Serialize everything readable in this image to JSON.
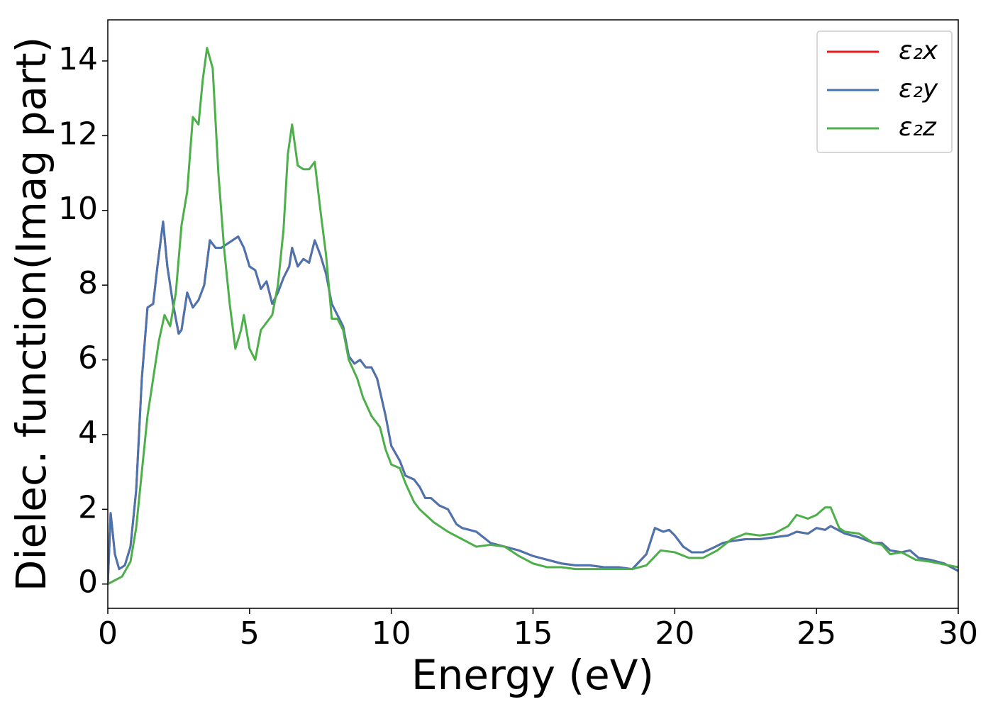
{
  "chart_data": {
    "type": "line",
    "xlabel": "Energy (eV)",
    "ylabel": "Dielec. function(Imag part)",
    "xlim": [
      0,
      30
    ],
    "xticks": [
      0,
      5,
      10,
      15,
      20,
      25,
      30
    ],
    "ylim": [
      -0.65,
      15.1
    ],
    "yticks": [
      0,
      2,
      4,
      6,
      8,
      10,
      12,
      14
    ],
    "legend": "upper right",
    "series": [
      {
        "name": "ε₂x",
        "color": "#e41a1c",
        "x": [
          0,
          0.1,
          0.25,
          0.4,
          0.6,
          0.8,
          1.0,
          1.2,
          1.4,
          1.6,
          1.75,
          1.95,
          2.1,
          2.3,
          2.5,
          2.6,
          2.8,
          3.0,
          3.2,
          3.4,
          3.6,
          3.8,
          4.0,
          4.2,
          4.6,
          4.8,
          5.0,
          5.2,
          5.4,
          5.6,
          5.8,
          6.0,
          6.2,
          6.4,
          6.5,
          6.7,
          6.9,
          7.1,
          7.3,
          7.5,
          7.7,
          7.9,
          8.1,
          8.3,
          8.5,
          8.7,
          8.9,
          9.1,
          9.3,
          9.5,
          9.8,
          10.0,
          10.3,
          10.5,
          10.8,
          11.0,
          11.2,
          11.4,
          11.7,
          12.0,
          12.3,
          12.5,
          13,
          13.5,
          14,
          14.5,
          15,
          15.5,
          16,
          16.5,
          17,
          17.5,
          18,
          18.5,
          19,
          19.3,
          19.6,
          19.8,
          20,
          20.3,
          20.6,
          21,
          21.3,
          21.7,
          22,
          22.5,
          23,
          23.5,
          24,
          24.3,
          24.7,
          25,
          25.3,
          25.5,
          26,
          26.5,
          27,
          27.3,
          27.6,
          28,
          28.3,
          28.6,
          29,
          29.5,
          30
        ],
        "values": [
          0,
          1.9,
          0.8,
          0.4,
          0.5,
          1.0,
          2.5,
          5.5,
          7.4,
          7.5,
          8.5,
          9.7,
          8.5,
          7.5,
          6.7,
          6.8,
          7.8,
          7.4,
          7.6,
          8.0,
          9.2,
          9.0,
          9.0,
          9.1,
          9.3,
          9.0,
          8.5,
          8.4,
          7.9,
          8.1,
          7.5,
          7.8,
          8.2,
          8.5,
          9.0,
          8.5,
          8.7,
          8.6,
          9.2,
          8.8,
          8.3,
          7.5,
          7.2,
          6.9,
          6.1,
          5.9,
          6.0,
          5.8,
          5.8,
          5.5,
          4.5,
          3.7,
          3.3,
          2.9,
          2.8,
          2.6,
          2.3,
          2.3,
          2.1,
          2.0,
          1.6,
          1.5,
          1.4,
          1.1,
          1.0,
          0.9,
          0.75,
          0.65,
          0.55,
          0.5,
          0.5,
          0.45,
          0.45,
          0.4,
          0.8,
          1.5,
          1.4,
          1.45,
          1.3,
          1.0,
          0.85,
          0.85,
          0.95,
          1.1,
          1.15,
          1.2,
          1.2,
          1.25,
          1.3,
          1.4,
          1.35,
          1.5,
          1.45,
          1.55,
          1.35,
          1.25,
          1.1,
          1.1,
          0.9,
          0.85,
          0.9,
          0.7,
          0.65,
          0.55,
          0.35
        ]
      },
      {
        "name": "ε₂y",
        "color": "#4a74b0",
        "x": [
          0,
          0.1,
          0.25,
          0.4,
          0.6,
          0.8,
          1.0,
          1.2,
          1.4,
          1.6,
          1.75,
          1.95,
          2.1,
          2.3,
          2.5,
          2.6,
          2.8,
          3.0,
          3.2,
          3.4,
          3.6,
          3.8,
          4.0,
          4.2,
          4.6,
          4.8,
          5.0,
          5.2,
          5.4,
          5.6,
          5.8,
          6.0,
          6.2,
          6.4,
          6.5,
          6.7,
          6.9,
          7.1,
          7.3,
          7.5,
          7.7,
          7.9,
          8.1,
          8.3,
          8.5,
          8.7,
          8.9,
          9.1,
          9.3,
          9.5,
          9.8,
          10.0,
          10.3,
          10.5,
          10.8,
          11.0,
          11.2,
          11.4,
          11.7,
          12.0,
          12.3,
          12.5,
          13,
          13.5,
          14,
          14.5,
          15,
          15.5,
          16,
          16.5,
          17,
          17.5,
          18,
          18.5,
          19,
          19.3,
          19.6,
          19.8,
          20,
          20.3,
          20.6,
          21,
          21.3,
          21.7,
          22,
          22.5,
          23,
          23.5,
          24,
          24.3,
          24.7,
          25,
          25.3,
          25.5,
          26,
          26.5,
          27,
          27.3,
          27.6,
          28,
          28.3,
          28.6,
          29,
          29.5,
          30
        ],
        "values": [
          0,
          1.9,
          0.8,
          0.4,
          0.5,
          1.0,
          2.5,
          5.5,
          7.4,
          7.5,
          8.5,
          9.7,
          8.5,
          7.5,
          6.7,
          6.8,
          7.8,
          7.4,
          7.6,
          8.0,
          9.2,
          9.0,
          9.0,
          9.1,
          9.3,
          9.0,
          8.5,
          8.4,
          7.9,
          8.1,
          7.5,
          7.8,
          8.2,
          8.5,
          9.0,
          8.5,
          8.7,
          8.6,
          9.2,
          8.8,
          8.3,
          7.5,
          7.2,
          6.9,
          6.1,
          5.9,
          6.0,
          5.8,
          5.8,
          5.5,
          4.5,
          3.7,
          3.3,
          2.9,
          2.8,
          2.6,
          2.3,
          2.3,
          2.1,
          2.0,
          1.6,
          1.5,
          1.4,
          1.1,
          1.0,
          0.9,
          0.75,
          0.65,
          0.55,
          0.5,
          0.5,
          0.45,
          0.45,
          0.4,
          0.8,
          1.5,
          1.4,
          1.45,
          1.3,
          1.0,
          0.85,
          0.85,
          0.95,
          1.1,
          1.15,
          1.2,
          1.2,
          1.25,
          1.3,
          1.4,
          1.35,
          1.5,
          1.45,
          1.55,
          1.35,
          1.25,
          1.1,
          1.1,
          0.9,
          0.85,
          0.9,
          0.7,
          0.65,
          0.55,
          0.35
        ]
      },
      {
        "name": "ε₂z",
        "color": "#4daf4a",
        "x": [
          0,
          0.5,
          0.8,
          1.0,
          1.2,
          1.4,
          1.6,
          1.8,
          2.0,
          2.2,
          2.4,
          2.6,
          2.8,
          3.0,
          3.2,
          3.35,
          3.5,
          3.7,
          3.9,
          4.1,
          4.3,
          4.5,
          4.7,
          4.8,
          5.0,
          5.2,
          5.4,
          5.6,
          5.8,
          6.0,
          6.2,
          6.35,
          6.5,
          6.7,
          6.9,
          7.1,
          7.3,
          7.5,
          7.7,
          7.9,
          8.1,
          8.3,
          8.5,
          8.8,
          9.0,
          9.3,
          9.6,
          9.8,
          10.0,
          10.3,
          10.5,
          10.8,
          11,
          11.5,
          12,
          12.5,
          13,
          13.5,
          14,
          14.5,
          15,
          15.5,
          16,
          16.5,
          17,
          18,
          18.5,
          19,
          19.5,
          20,
          20.5,
          21,
          21.5,
          22,
          22.5,
          23,
          23.5,
          24,
          24.3,
          24.7,
          25,
          25.3,
          25.5,
          25.8,
          26,
          26.5,
          27,
          27.3,
          27.6,
          28,
          28.5,
          29,
          30
        ],
        "values": [
          0,
          0.2,
          0.6,
          1.5,
          3.0,
          4.5,
          5.5,
          6.5,
          7.2,
          6.9,
          7.8,
          9.6,
          10.5,
          12.5,
          12.3,
          13.5,
          14.35,
          13.8,
          11.0,
          9.0,
          7.5,
          6.3,
          6.8,
          7.2,
          6.3,
          6.0,
          6.8,
          7.0,
          7.2,
          8.0,
          9.5,
          11.5,
          12.3,
          11.2,
          11.1,
          11.1,
          11.3,
          10.0,
          8.8,
          7.1,
          7.1,
          6.8,
          6.0,
          5.5,
          5.0,
          4.5,
          4.2,
          3.6,
          3.2,
          3.1,
          2.7,
          2.2,
          2.0,
          1.65,
          1.4,
          1.2,
          1.0,
          1.05,
          1.0,
          0.75,
          0.55,
          0.45,
          0.45,
          0.4,
          0.4,
          0.4,
          0.4,
          0.5,
          0.9,
          0.85,
          0.7,
          0.7,
          0.9,
          1.2,
          1.35,
          1.3,
          1.35,
          1.55,
          1.85,
          1.75,
          1.85,
          2.05,
          2.05,
          1.5,
          1.4,
          1.35,
          1.1,
          1.05,
          0.8,
          0.85,
          0.65,
          0.6,
          0.45
        ]
      }
    ]
  }
}
